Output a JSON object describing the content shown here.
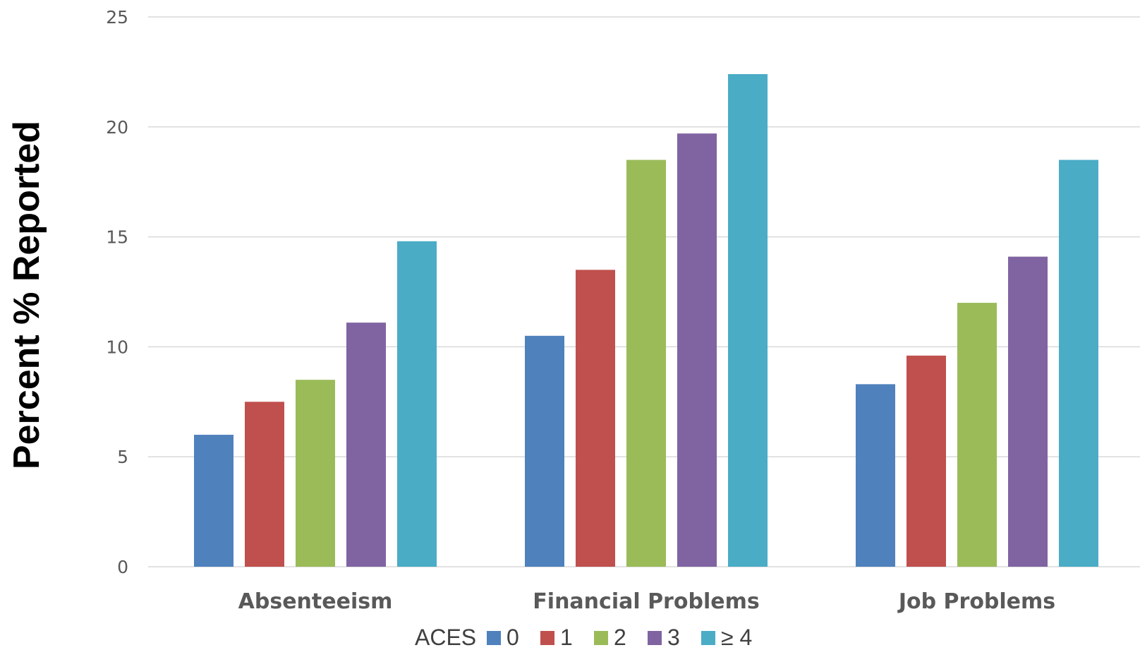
{
  "chart_data": {
    "type": "bar",
    "ylabel": "Percent % Reported",
    "xlabel": "",
    "ylim": [
      0,
      25
    ],
    "yticks": [
      0,
      5,
      10,
      15,
      20,
      25
    ],
    "grid": true,
    "categories": [
      "Absenteeism",
      "Financial Problems",
      "Job Problems"
    ],
    "legend": {
      "title": "ACES",
      "placement": "bottom"
    },
    "series": [
      {
        "name": "0",
        "color": "#4f81bd",
        "values": [
          6.0,
          10.5,
          8.3
        ]
      },
      {
        "name": "1",
        "color": "#c0504d",
        "values": [
          7.5,
          13.5,
          9.6
        ]
      },
      {
        "name": "2",
        "color": "#9bbb59",
        "values": [
          8.5,
          18.5,
          12.0
        ]
      },
      {
        "name": "3",
        "color": "#8064a2",
        "values": [
          11.1,
          19.7,
          14.1
        ]
      },
      {
        "name": "≥ 4",
        "color": "#4bacc6",
        "values": [
          14.8,
          22.4,
          18.5
        ]
      }
    ]
  }
}
